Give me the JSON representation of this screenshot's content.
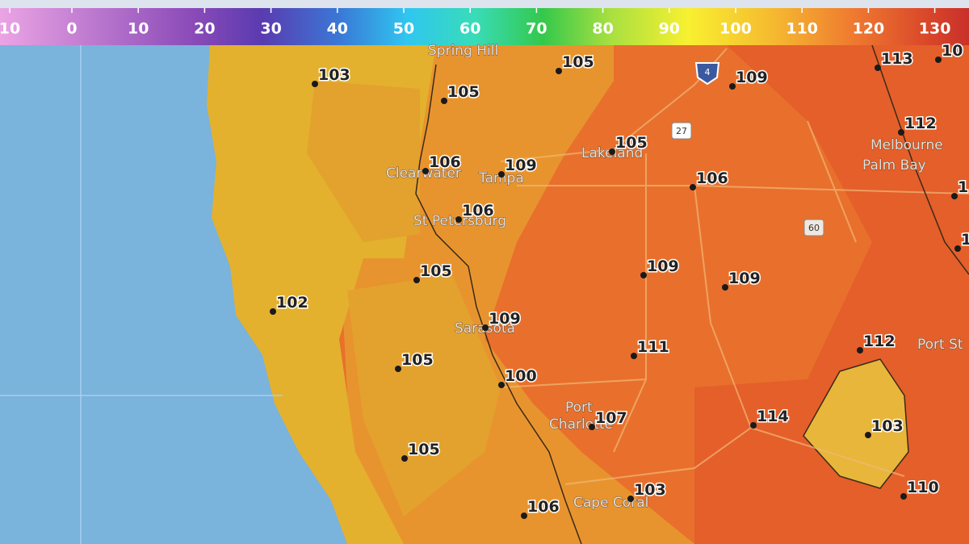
{
  "legend": {
    "labels": [
      "10",
      "0",
      "10",
      "20",
      "30",
      "40",
      "50",
      "60",
      "70",
      "80",
      "90",
      "100",
      "110",
      "120",
      "130"
    ]
  },
  "points": [
    "103",
    "105",
    "105",
    "109",
    "113",
    "10",
    "112",
    "106",
    "109",
    "105",
    "106",
    "106",
    "1",
    "1",
    "105",
    "109",
    "109",
    "102",
    "109",
    "111",
    "112",
    "105",
    "100",
    "107",
    "114",
    "103",
    "105",
    "103",
    "110",
    "106"
  ],
  "places": [
    "Spring Hill",
    "Clearwater",
    "Tampa",
    "Lakeland",
    "St Petersburg",
    "Melbourne",
    "Palm Bay",
    "Sarasota",
    "Port",
    "Charlotte",
    "Cape Coral",
    "Port St"
  ],
  "shields": [
    "4",
    "27",
    "60"
  ]
}
